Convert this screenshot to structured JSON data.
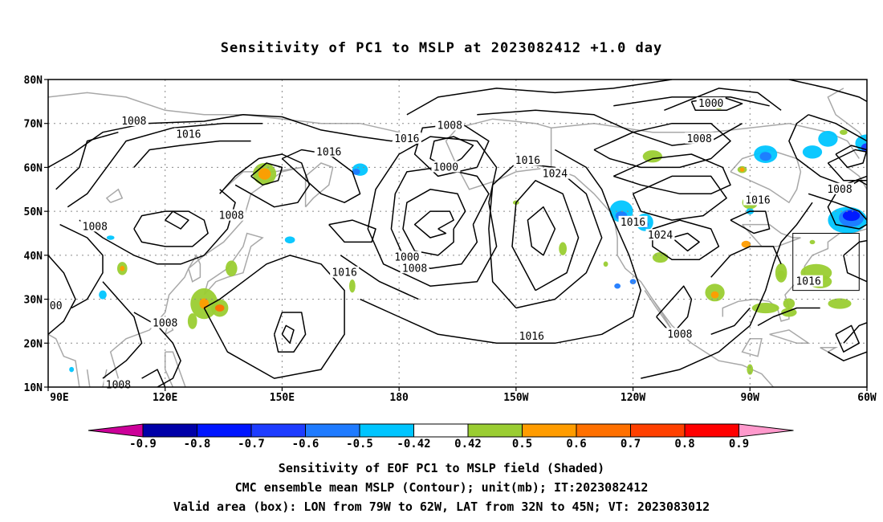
{
  "title": "Sensitivity of PC1 to MSLP at 2023082412 +1.0 day",
  "axes": {
    "lat_ticks": [
      "80N",
      "70N",
      "60N",
      "50N",
      "40N",
      "30N",
      "20N",
      "10N"
    ],
    "lon_ticks": [
      "90E",
      "120E",
      "150E",
      "180",
      "150W",
      "120W",
      "90W",
      "60W"
    ]
  },
  "contour_labels": [
    {
      "text": "1008",
      "lon": 112,
      "lat": 70.5
    },
    {
      "text": "1016",
      "lon": 126,
      "lat": 67.5
    },
    {
      "text": "1016",
      "lon": 162,
      "lat": 63.5
    },
    {
      "text": "1016",
      "lon": -178,
      "lat": 66.5
    },
    {
      "text": "1008",
      "lon": -167,
      "lat": 69.5
    },
    {
      "text": "1000",
      "lon": -168,
      "lat": 60.0
    },
    {
      "text": "1016",
      "lon": -147,
      "lat": 61.5
    },
    {
      "text": "1024",
      "lon": -140,
      "lat": 58.5
    },
    {
      "text": "1000",
      "lon": -100,
      "lat": 74.5
    },
    {
      "text": "1008",
      "lon": -103,
      "lat": 66.5
    },
    {
      "text": "1008",
      "lon": 137,
      "lat": 49.0
    },
    {
      "text": "1008",
      "lon": 102,
      "lat": 46.5
    },
    {
      "text": "1016",
      "lon": 166,
      "lat": 36.0
    },
    {
      "text": "1000",
      "lon": -178,
      "lat": 39.5
    },
    {
      "text": "1008",
      "lon": -176,
      "lat": 37.0
    },
    {
      "text": "1016",
      "lon": -120,
      "lat": 47.5
    },
    {
      "text": "1024",
      "lon": -113,
      "lat": 44.5
    },
    {
      "text": "1016",
      "lon": -88,
      "lat": 52.5
    },
    {
      "text": "1008",
      "lon": -67,
      "lat": 55.0
    },
    {
      "text": "1016",
      "lon": -75,
      "lat": 34.0
    },
    {
      "text": "1016",
      "lon": -146,
      "lat": 21.5
    },
    {
      "text": "1008",
      "lon": -108,
      "lat": 22.0
    },
    {
      "text": "1008",
      "lon": 120,
      "lat": 24.5
    },
    {
      "text": "1008",
      "lon": 108,
      "lat": 10.5
    },
    {
      "text": "00",
      "lon": 92,
      "lat": 28.5
    }
  ],
  "valid_box": {
    "lon_min": -79,
    "lon_max": -62,
    "lat_min": 32,
    "lat_max": 45
  },
  "colorbar": {
    "labels": [
      "-0.9",
      "-0.8",
      "-0.7",
      "-0.6",
      "-0.5",
      "-0.42",
      "0.42",
      "0.5",
      "0.6",
      "0.7",
      "0.8",
      "0.9"
    ],
    "colors": [
      "#0000a8",
      "#0015ff",
      "#1e3cff",
      "#1f7bff",
      "#00c5ff",
      "#ffffff",
      "#9acd32",
      "#ff9c00",
      "#ff7000",
      "#ff4000",
      "#ff0000"
    ],
    "low_extend_color": "#cc0099",
    "high_extend_color": "#ff99cc"
  },
  "captions": [
    "Sensitivity of EOF PC1 to MSLP field (Shaded)",
    "CMC ensemble mean MSLP (Contour); unit(mb); IT:2023082412",
    "Valid area (box): LON from 79W to 62W, LAT from 32N to 45N; VT: 2023083012"
  ],
  "colors": {
    "coast": "#a8a8a8",
    "contour": "#000000",
    "grid": "#8a8a8a"
  }
}
